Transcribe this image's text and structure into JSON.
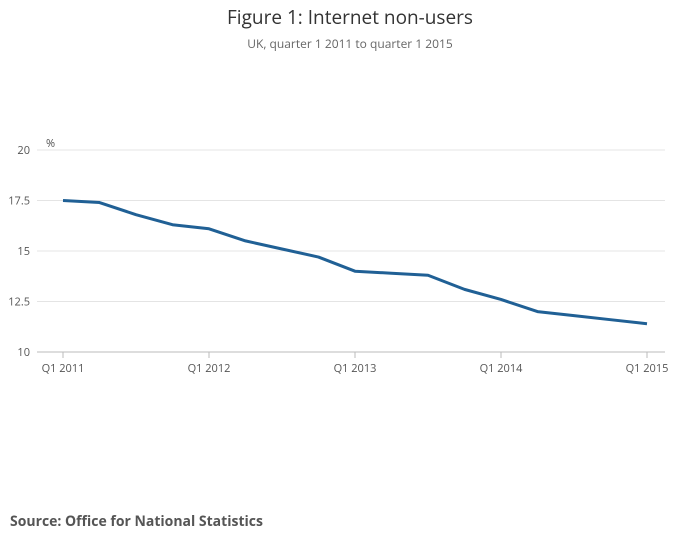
{
  "chart_data": {
    "type": "line",
    "title": "Figure 1: Internet non-users",
    "subtitle": "UK, quarter 1 2011 to quarter 1 2015",
    "y_label": "%",
    "source": "Source: Office for National Statistics",
    "categories": [
      "Q1 2011",
      null,
      null,
      null,
      "Q1 2012",
      null,
      null,
      null,
      "Q1 2013",
      null,
      null,
      null,
      "Q1 2014",
      null,
      null,
      null,
      "Q1 2015"
    ],
    "values": [
      17.5,
      17.4,
      16.8,
      16.3,
      16.1,
      15.5,
      15.1,
      14.7,
      14.0,
      13.9,
      13.8,
      13.1,
      12.6,
      12.0,
      11.8,
      11.6,
      11.4
    ],
    "color": "#206095",
    "ylim": [
      10,
      20
    ],
    "yticks": [
      10,
      12.5,
      15,
      17.5,
      20
    ],
    "grid": true
  }
}
